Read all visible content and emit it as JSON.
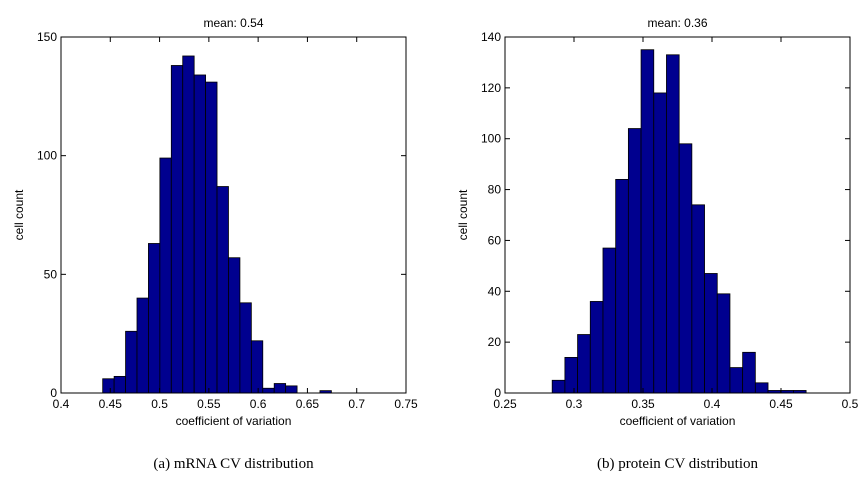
{
  "colors": {
    "bar_fill": "#00008f",
    "bar_edge": "#000000",
    "axis": "#000000"
  },
  "chart_data": [
    {
      "type": "bar",
      "title": "mean: 0.54",
      "xlabel": "coefficient of variation",
      "ylabel": "cell count",
      "caption": "(a)  mRNA CV distribution",
      "xlim": [
        0.4,
        0.75
      ],
      "ylim": [
        0,
        150
      ],
      "xticks": [
        "0.4",
        "0.45",
        "0.5",
        "0.55",
        "0.6",
        "0.65",
        "0.7",
        "0.75"
      ],
      "xtick_values": [
        0.4,
        0.45,
        0.5,
        0.55,
        0.6,
        0.65,
        0.7,
        0.75
      ],
      "yticks": [
        "0",
        "50",
        "100",
        "150"
      ],
      "ytick_values": [
        0,
        50,
        100,
        150
      ],
      "bin_edges": [
        0.4423,
        0.4539,
        0.4655,
        0.4771,
        0.4887,
        0.5003,
        0.5119,
        0.5235,
        0.5351,
        0.5467,
        0.5583,
        0.5699,
        0.5815,
        0.5931,
        0.6047,
        0.6163,
        0.6279,
        0.6395,
        0.6511,
        0.6627,
        0.6743,
        0.6859
      ],
      "values": [
        6,
        7,
        26,
        40,
        63,
        99,
        138,
        142,
        134,
        131,
        87,
        57,
        38,
        22,
        2,
        4,
        3,
        0,
        0,
        1,
        0
      ]
    },
    {
      "type": "bar",
      "title": "mean: 0.36",
      "xlabel": "coefficient of variation",
      "ylabel": "cell count",
      "caption": "(b)  protein CV distribution",
      "xlim": [
        0.25,
        0.5
      ],
      "ylim": [
        0,
        140
      ],
      "xticks": [
        "0.25",
        "0.3",
        "0.35",
        "0.4",
        "0.45",
        "0.5"
      ],
      "xtick_values": [
        0.25,
        0.3,
        0.35,
        0.4,
        0.45,
        0.5
      ],
      "yticks": [
        "0",
        "20",
        "40",
        "60",
        "80",
        "100",
        "120",
        "140"
      ],
      "ytick_values": [
        0,
        20,
        40,
        60,
        80,
        100,
        120,
        140
      ],
      "bin_edges": [
        0.2842,
        0.2934,
        0.3026,
        0.3118,
        0.321,
        0.3302,
        0.3394,
        0.3486,
        0.3578,
        0.367,
        0.3762,
        0.3854,
        0.3946,
        0.4038,
        0.413,
        0.4222,
        0.4314,
        0.4406,
        0.4498,
        0.459,
        0.4682
      ],
      "values": [
        5,
        14,
        23,
        36,
        57,
        84,
        104,
        135,
        118,
        133,
        98,
        74,
        47,
        39,
        10,
        16,
        4,
        1,
        1,
        1
      ]
    }
  ]
}
